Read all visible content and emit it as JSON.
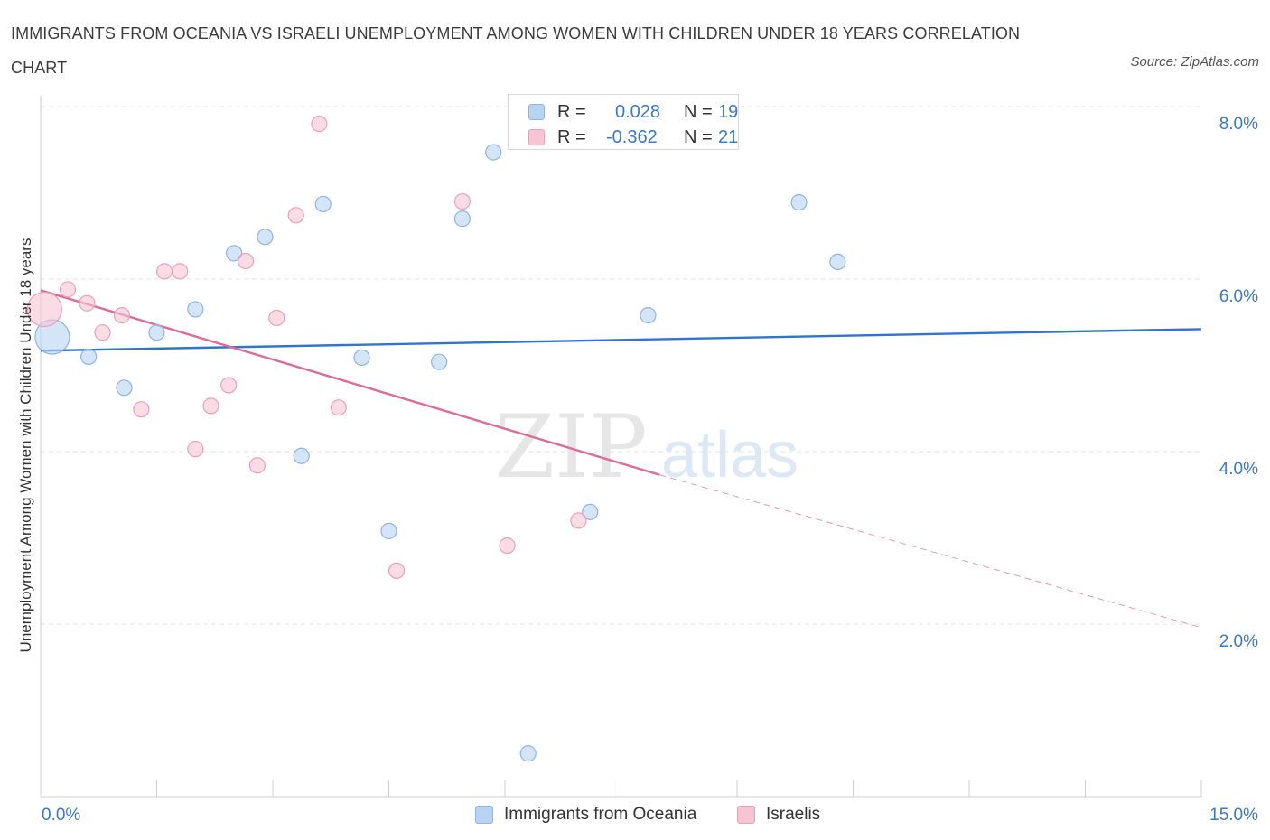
{
  "title": "IMMIGRANTS FROM OCEANIA VS ISRAELI UNEMPLOYMENT AMONG WOMEN WITH CHILDREN UNDER 18 YEARS CORRELATION CHART",
  "source": "Source: ZipAtlas.com",
  "watermark": {
    "zip": "ZIP",
    "atlas": "atlas"
  },
  "colors": {
    "blue_fill": "#b9d3f3",
    "blue_stroke": "#8fb4e3",
    "blue_line": "#2f74d0",
    "pink_fill": "#f7c4d4",
    "pink_stroke": "#ec9fb8",
    "pink_line": "#e06a97",
    "axis_text": "#3a78c9",
    "grid": "#e3e3e3"
  },
  "legend": {
    "rows": [
      {
        "r_label": "R =",
        "r_value": "0.028",
        "n_label": "N =",
        "n_value": "19"
      },
      {
        "r_label": "R =",
        "r_value": "-0.362",
        "n_label": "N =",
        "n_value": "21"
      }
    ]
  },
  "chart_data": {
    "type": "scatter",
    "title": "IMMIGRANTS FROM OCEANIA VS ISRAELI UNEMPLOYMENT AMONG WOMEN WITH CHILDREN UNDER 18 YEARS CORRELATION CHART",
    "xlabel": "",
    "ylabel": "Unemployment Among Women with Children Under 18 years",
    "xlim": [
      0,
      15
    ],
    "ylim": [
      0,
      8
    ],
    "x_tick_labels": [
      "0.0%",
      "15.0%"
    ],
    "y_ticks": [
      2,
      4,
      6,
      8
    ],
    "y_tick_labels": [
      "2.0%",
      "4.0%",
      "6.0%",
      "8.0%"
    ],
    "grid": true,
    "legend_position": "top-center",
    "series": [
      {
        "name": "Immigrants from Oceania",
        "color": "#b9d3f3",
        "r": "0.028",
        "n": "19",
        "points": [
          {
            "x": 0.15,
            "y": 5.33,
            "big": true
          },
          {
            "x": 0.62,
            "y": 5.1
          },
          {
            "x": 1.08,
            "y": 4.74
          },
          {
            "x": 1.5,
            "y": 5.38
          },
          {
            "x": 2.0,
            "y": 5.65
          },
          {
            "x": 2.5,
            "y": 6.3
          },
          {
            "x": 2.9,
            "y": 6.49
          },
          {
            "x": 3.37,
            "y": 3.95
          },
          {
            "x": 3.65,
            "y": 6.87
          },
          {
            "x": 4.15,
            "y": 5.09
          },
          {
            "x": 4.5,
            "y": 3.08
          },
          {
            "x": 5.15,
            "y": 5.04
          },
          {
            "x": 5.45,
            "y": 6.7
          },
          {
            "x": 5.85,
            "y": 7.47
          },
          {
            "x": 6.3,
            "y": 0.5
          },
          {
            "x": 7.1,
            "y": 3.3
          },
          {
            "x": 7.85,
            "y": 5.58
          },
          {
            "x": 9.8,
            "y": 6.89
          },
          {
            "x": 10.3,
            "y": 6.2
          }
        ],
        "trend": {
          "x1": 0.0,
          "y1": 5.17,
          "x2": 15.0,
          "y2": 5.42
        }
      },
      {
        "name": "Israelis",
        "color": "#f7c4d4",
        "r": "-0.362",
        "n": "21",
        "points": [
          {
            "x": 0.05,
            "y": 5.65,
            "big": true
          },
          {
            "x": 0.35,
            "y": 5.88
          },
          {
            "x": 0.6,
            "y": 5.72
          },
          {
            "x": 0.8,
            "y": 5.38
          },
          {
            "x": 1.05,
            "y": 5.58
          },
          {
            "x": 1.3,
            "y": 4.49
          },
          {
            "x": 1.6,
            "y": 6.09
          },
          {
            "x": 1.8,
            "y": 6.09
          },
          {
            "x": 2.0,
            "y": 4.03
          },
          {
            "x": 2.2,
            "y": 4.53
          },
          {
            "x": 2.43,
            "y": 4.77
          },
          {
            "x": 2.65,
            "y": 6.21
          },
          {
            "x": 2.8,
            "y": 3.84
          },
          {
            "x": 3.05,
            "y": 5.55
          },
          {
            "x": 3.3,
            "y": 6.74
          },
          {
            "x": 3.6,
            "y": 7.8
          },
          {
            "x": 3.85,
            "y": 4.51
          },
          {
            "x": 4.6,
            "y": 2.62
          },
          {
            "x": 5.45,
            "y": 6.9
          },
          {
            "x": 6.03,
            "y": 2.91
          },
          {
            "x": 6.95,
            "y": 3.2
          }
        ],
        "trend": {
          "x1": 0.0,
          "y1": 5.87,
          "x2": 8.0,
          "y2": 3.73
        },
        "trend_dashed": {
          "x1": 8.0,
          "y1": 3.73,
          "x2": 15.0,
          "y2": 1.96
        }
      }
    ]
  }
}
